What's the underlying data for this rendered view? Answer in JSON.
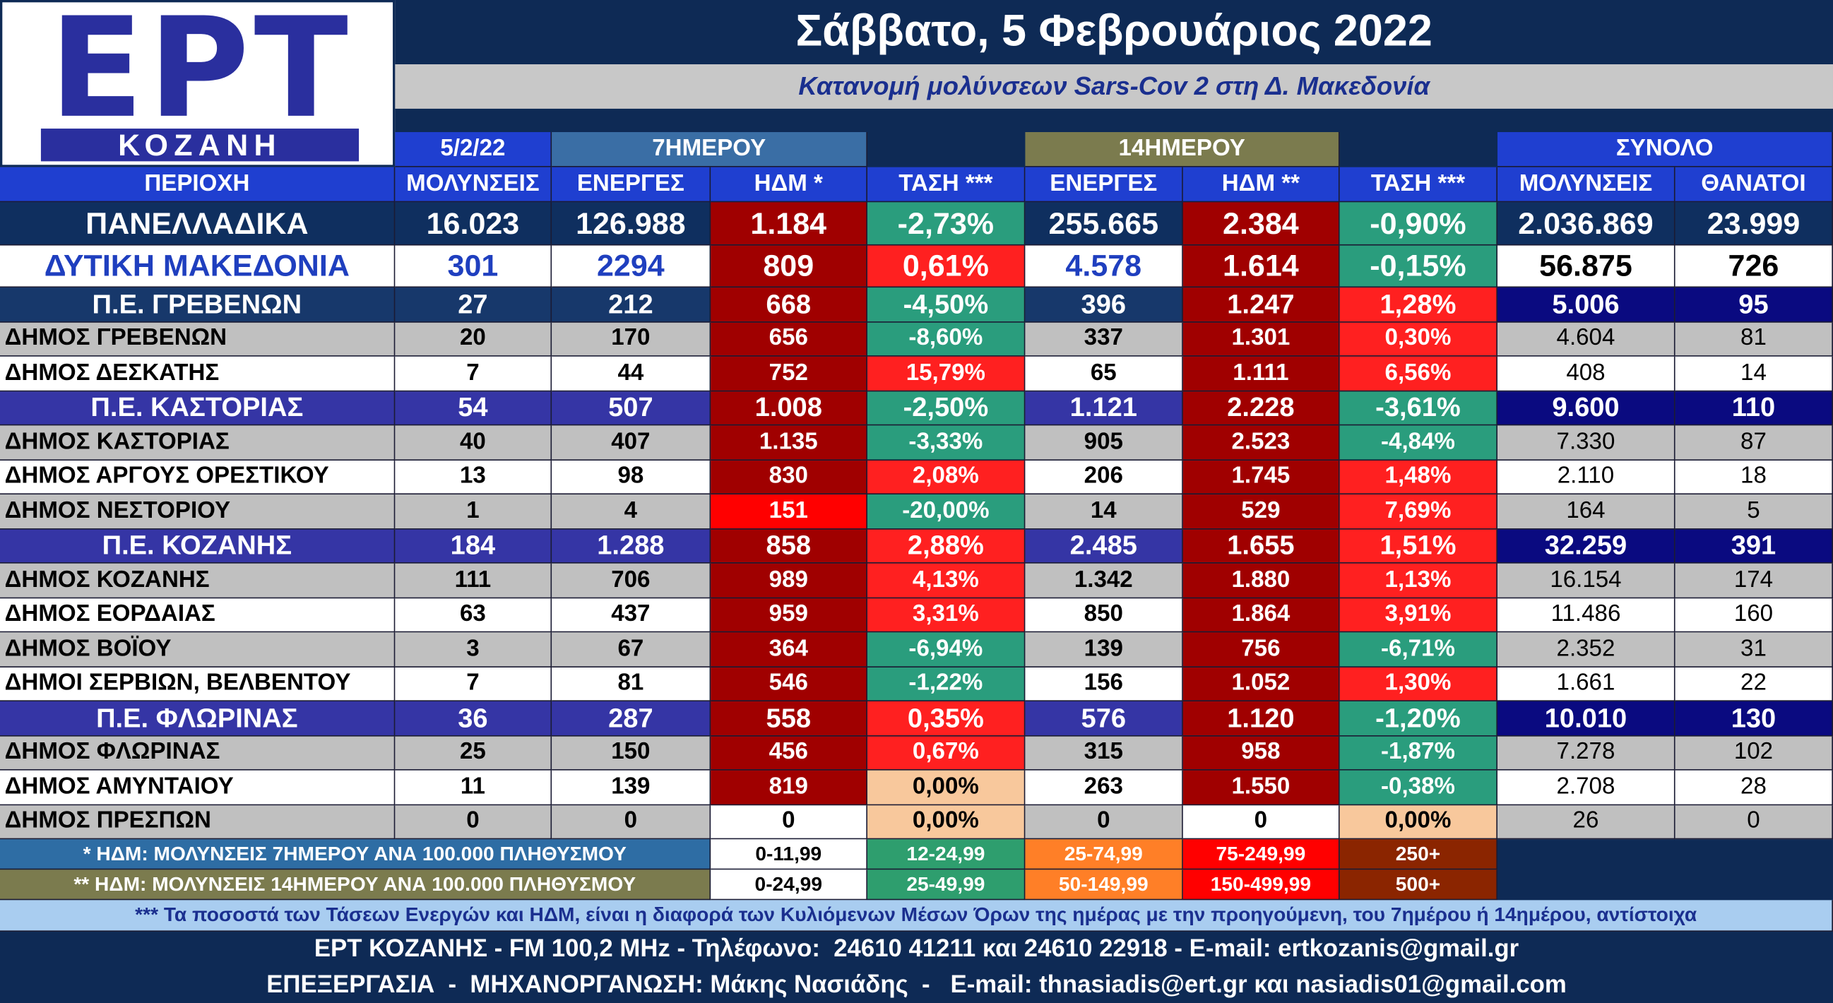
{
  "logo": {
    "name": "ΕΡΤ",
    "city": "ΚΟΖΑΝΗ"
  },
  "header": {
    "title": "Σάββατο, 5 Φεβρουάριος 2022",
    "subtitle": "Κατανομή μολύνσεων Sars-Cov 2 στη Δ. Μακεδονία"
  },
  "table": {
    "group_headers": [
      "5/2/22",
      "7ΗΜΕΡΟΥ",
      "14ΗΜΕΡΟΥ",
      "ΣΥΝΟΛΟ"
    ],
    "columns": [
      "ΠΕΡΙΟΧΗ",
      "ΜΟΛΥΝΣΕΙΣ",
      "ΕΝΕΡΓΕΣ",
      "ΗΔΜ *",
      "ΤΑΣΗ ***",
      "ΕΝΕΡΓΕΣ",
      "ΗΔΜ **",
      "ΤΑΣΗ ***",
      "ΜΟΛΥΝΣΕΙΣ",
      "ΘΑΝΑΤΟΙ"
    ],
    "rows": [
      [
        "ΠΑΝΕΛΛΑΔΙΚΑ",
        "16.023",
        "126.988",
        "1.184",
        "-2,73%",
        "255.665",
        "2.384",
        "-0,90%",
        "2.036.869",
        "23.999"
      ],
      [
        "ΔΥΤΙΚΗ ΜΑΚΕΔΟΝΙΑ",
        "301",
        "2294",
        "809",
        "0,61%",
        "4.578",
        "1.614",
        "-0,15%",
        "56.875",
        "726"
      ],
      [
        "Π.Ε. ΓΡΕΒΕΝΩΝ",
        "27",
        "212",
        "668",
        "-4,50%",
        "396",
        "1.247",
        "1,28%",
        "5.006",
        "95"
      ],
      [
        "ΔΗΜΟΣ ΓΡΕΒΕΝΩΝ",
        "20",
        "170",
        "656",
        "-8,60%",
        "337",
        "1.301",
        "0,30%",
        "4.604",
        "81"
      ],
      [
        "ΔΗΜΟΣ ΔΕΣΚΑΤΗΣ",
        "7",
        "44",
        "752",
        "15,79%",
        "65",
        "1.111",
        "6,56%",
        "408",
        "14"
      ],
      [
        "Π.Ε. ΚΑΣΤΟΡΙΑΣ",
        "54",
        "507",
        "1.008",
        "-2,50%",
        "1.121",
        "2.228",
        "-3,61%",
        "9.600",
        "110"
      ],
      [
        "ΔΗΜΟΣ ΚΑΣΤΟΡΙΑΣ",
        "40",
        "407",
        "1.135",
        "-3,33%",
        "905",
        "2.523",
        "-4,84%",
        "7.330",
        "87"
      ],
      [
        "ΔΗΜΟΣ ΑΡΓΟΥΣ ΟΡΕΣΤΙΚΟΥ",
        "13",
        "98",
        "830",
        "2,08%",
        "206",
        "1.745",
        "1,48%",
        "2.110",
        "18"
      ],
      [
        "ΔΗΜΟΣ ΝΕΣΤΟΡΙΟΥ",
        "1",
        "4",
        "151",
        "-20,00%",
        "14",
        "529",
        "7,69%",
        "164",
        "5"
      ],
      [
        "Π.Ε. ΚΟΖΑΝΗΣ",
        "184",
        "1.288",
        "858",
        "2,88%",
        "2.485",
        "1.655",
        "1,51%",
        "32.259",
        "391"
      ],
      [
        "ΔΗΜΟΣ ΚΟΖΑΝΗΣ",
        "111",
        "706",
        "989",
        "4,13%",
        "1.342",
        "1.880",
        "1,13%",
        "16.154",
        "174"
      ],
      [
        "ΔΗΜΟΣ ΕΟΡΔΑΙΑΣ",
        "63",
        "437",
        "959",
        "3,31%",
        "850",
        "1.864",
        "3,91%",
        "11.486",
        "160"
      ],
      [
        "ΔΗΜΟΣ ΒΟΪΟΥ",
        "3",
        "67",
        "364",
        "-6,94%",
        "139",
        "756",
        "-6,71%",
        "2.352",
        "31"
      ],
      [
        "ΔΗΜΟΙ ΣΕΡΒΙΩΝ, ΒΕΛΒΕΝΤΟΥ",
        "7",
        "81",
        "546",
        "-1,22%",
        "156",
        "1.052",
        "1,30%",
        "1.661",
        "22"
      ],
      [
        "Π.Ε. ΦΛΩΡΙΝΑΣ",
        "36",
        "287",
        "558",
        "0,35%",
        "576",
        "1.120",
        "-1,20%",
        "10.010",
        "130"
      ],
      [
        "ΔΗΜΟΣ ΦΛΩΡΙΝΑΣ",
        "25",
        "150",
        "456",
        "0,67%",
        "315",
        "958",
        "-1,87%",
        "7.278",
        "102"
      ],
      [
        "ΔΗΜΟΣ ΑΜΥΝΤΑΙΟΥ",
        "11",
        "139",
        "819",
        "0,00%",
        "263",
        "1.550",
        "-0,38%",
        "2.708",
        "28"
      ],
      [
        "ΔΗΜΟΣ ΠΡΕΣΠΩΝ",
        "0",
        "0",
        "0",
        "0,00%",
        "0",
        "0",
        "0,00%",
        "26",
        "0"
      ]
    ]
  },
  "legend": {
    "rows": [
      {
        "label": "* ΗΔΜ: ΜΟΛΥΝΣΕΙΣ 7ΗΜΕΡΟΥ ΑΝΑ 100.000 ΠΛΗΘΥΣΜΟΥ",
        "ranges": [
          "0-11,99",
          "12-24,99",
          "25-74,99",
          "75-249,99",
          "250+"
        ]
      },
      {
        "label": "** ΗΔΜ: ΜΟΛΥΝΣΕΙΣ 14ΗΜΕΡΟΥ ΑΝΑ 100.000 ΠΛΗΘΥΣΜΟΥ",
        "ranges": [
          "0-24,99",
          "25-49,99",
          "50-149,99",
          "150-499,99",
          "500+"
        ]
      }
    ]
  },
  "note": "*** Τα ποσοστά των Τάσεων Ενεργών και ΗΔΜ, είναι η διαφορά των Κυλιόμενων Μέσων Όρων της ημέρας με την προηγούμενη, του 7ημέρου ή 14ημέρου, αντίστοιχα",
  "footer": [
    "ΕΡΤ ΚΟΖΑΝΗΣ - FM 100,2 MHz - Τηλέφωνο:  24610 41211 και 24610 22918 - E-mail: ertkozanis@gmail.gr",
    "ΕΠΕΞΕΡΓΑΣΙΑ  -  ΜΗΧΑΝΟΡΓΑΝΩΣΗ: Μάκης Νασιάδης  -   E-mail: thnasiadis@ert.gr και nasiadis01@gmail.com"
  ]
}
